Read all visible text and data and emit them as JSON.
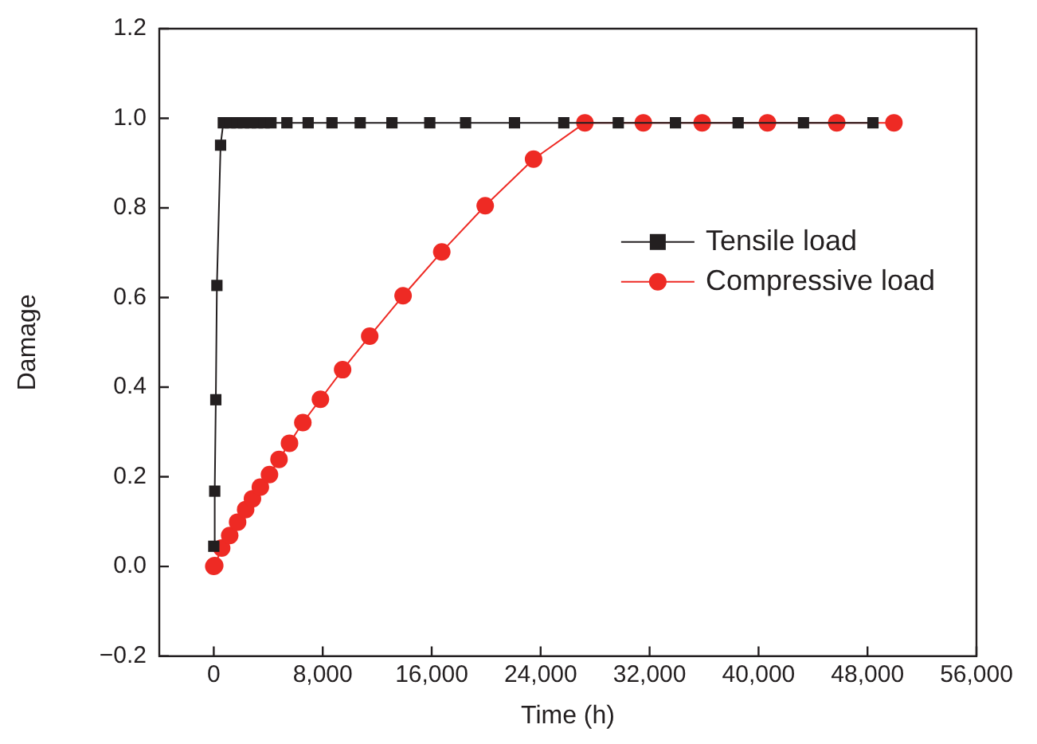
{
  "chart_data": {
    "type": "line",
    "xlabel": "Time (h)",
    "ylabel": "Damage",
    "xlim": [
      -4000,
      56000
    ],
    "xticks": [
      0,
      {
        "value": 8000,
        "label": "8,000"
      },
      {
        "value": 16000,
        "label": "16,000"
      },
      {
        "value": 24000,
        "label": "24,000"
      },
      {
        "value": 32000,
        "label": "32,000"
      },
      {
        "value": 40000,
        "label": "40,000"
      },
      {
        "value": 48000,
        "label": "48,000"
      },
      {
        "value": 56000,
        "label": "56,000"
      }
    ],
    "ylim": [
      -0.2,
      1.2
    ],
    "yticks": [
      {
        "value": -0.2,
        "label": "−0.2"
      },
      {
        "value": 0,
        "label": "0.0"
      },
      {
        "value": 0.2,
        "label": "0.2"
      },
      {
        "value": 0.4,
        "label": "0.4"
      },
      {
        "value": 0.6,
        "label": "0.6"
      },
      {
        "value": 0.8,
        "label": "0.8"
      },
      {
        "value": 1,
        "label": "1.0"
      },
      {
        "value": 1.2,
        "label": "1.2"
      }
    ],
    "grid": false,
    "legend": "right",
    "line_style": "solid",
    "series": [
      {
        "name": "Tensile load",
        "color": "#231f20",
        "marker": "square",
        "x": [
          0,
          70,
          150,
          230,
          500,
          700,
          1200,
          1700,
          2200,
          2700,
          3200,
          3700,
          4200,
          5370,
          6930,
          8680,
          10750,
          13080,
          15860,
          18490,
          22080,
          25700,
          29700,
          33900,
          38500,
          43300,
          48400
        ],
        "values": [
          0.045,
          0.168,
          0.372,
          0.627,
          0.94,
          0.99,
          0.99,
          0.99,
          0.99,
          0.99,
          0.99,
          0.99,
          0.99,
          0.99,
          0.99,
          0.99,
          0.99,
          0.99,
          0.99,
          0.99,
          0.99,
          0.99,
          0.99,
          0.99,
          0.99,
          0.99,
          0.99
        ]
      },
      {
        "name": "Compressive load",
        "color": "#ee2a24",
        "marker": "circle",
        "x": [
          0,
          70,
          580,
          1170,
          1750,
          2340,
          2840,
          3420,
          4090,
          4790,
          5560,
          6540,
          7830,
          9460,
          11450,
          13900,
          16740,
          19930,
          23480,
          27250,
          31540,
          35860,
          40650,
          45740,
          49940
        ],
        "values": [
          0,
          0.002,
          0.041,
          0.069,
          0.099,
          0.127,
          0.151,
          0.177,
          0.205,
          0.239,
          0.275,
          0.321,
          0.373,
          0.439,
          0.514,
          0.604,
          0.702,
          0.805,
          0.909,
          0.99,
          0.99,
          0.99,
          0.99,
          0.99,
          0.99
        ]
      }
    ]
  }
}
